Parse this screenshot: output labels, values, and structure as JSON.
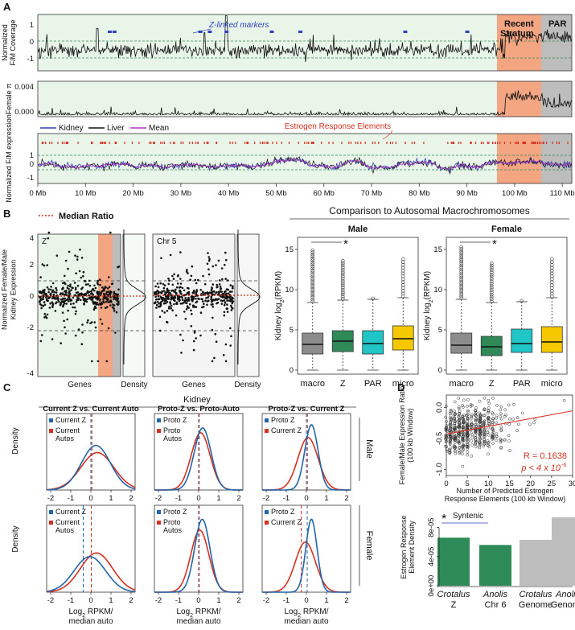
{
  "panels": {
    "A": "A",
    "B": "B",
    "C": "C",
    "D": "D"
  },
  "colors": {
    "region_bg": "#eaf5ea",
    "recent_stratum": "#f4a582",
    "par": "#bdbdbd",
    "kidney": "#2d3fc0",
    "liver": "#111111",
    "mean": "#b030c8",
    "male_female_red": "#d7301f",
    "blue": "#2166ac",
    "macro": "#8c8c8c",
    "z": "#2e8b57",
    "par_box": "#20c5c5",
    "micro": "#f5c800",
    "bar_green": "#2e8b57",
    "bar_grey": "#bdbdbd"
  },
  "chart_data": [
    {
      "id": "A1",
      "type": "line",
      "ylabel": "Normalized F/M Coverage",
      "yticks": [
        1,
        0,
        -1
      ],
      "ylim": [
        -1.4,
        1.5
      ],
      "annotation": "Z-linked markers",
      "marker_positions_mb": [
        15,
        16,
        34,
        36,
        39.5,
        49,
        55,
        77,
        90
      ],
      "regions": [
        {
          "label": "Recent Stratum",
          "start_mb": 98,
          "end_mb": 106
        },
        {
          "label": "PAR",
          "start_mb": 106,
          "end_mb": 112
        }
      ],
      "xlim_mb": [
        0,
        112
      ]
    },
    {
      "id": "A2",
      "type": "line",
      "ylabel": "Female π",
      "yticks": [
        "0.004",
        "0.000"
      ],
      "ylim": [
        0,
        0.005
      ]
    },
    {
      "id": "A3",
      "type": "line",
      "ylabel": "Normalized F/M expression",
      "yticks": [
        1,
        0,
        -1
      ],
      "ylim": [
        -1.4,
        1.4
      ],
      "legend": [
        "Kidney",
        "Liver",
        "Mean"
      ],
      "annotation": "Estrogen Response Elements",
      "xticks": [
        "0 Mb",
        "10 Mb",
        "20 Mb",
        "30 Mb",
        "40 Mb",
        "50 Mb",
        "60 Mb",
        "70 Mb",
        "80 Mb",
        "90 Mb",
        "100 Mb",
        "110 Mb"
      ]
    },
    {
      "id": "B1",
      "type": "scatter",
      "legend": "Median Ratio",
      "ylabel": "Normalized Female/Male Kidney Expression",
      "yticks": [
        4,
        2,
        0,
        -2,
        -4
      ],
      "ylim": [
        -4.3,
        4.3
      ],
      "subpanels": [
        {
          "label": "Z",
          "xlabel": "Genes"
        },
        {
          "label": "Chr 5",
          "xlabel": "Genes"
        }
      ],
      "density_label": "Density"
    },
    {
      "id": "B2",
      "type": "box",
      "super_title": "Comparison to Autosomal Macrochromosomes",
      "ylabel": "Kidney log2(RPKM)",
      "yticks": [
        0,
        5,
        10,
        15
      ],
      "ylim": [
        -0.5,
        16.5
      ],
      "categories": [
        "macro",
        "Z",
        "PAR",
        "micro"
      ],
      "panels": [
        {
          "title": "Male",
          "star": "*",
          "boxes": [
            {
              "q1": 2.0,
              "median": 3.2,
              "q3": 4.6,
              "wlo": 0,
              "whi": 8.4
            },
            {
              "q1": 2.3,
              "median": 3.6,
              "q3": 4.9,
              "wlo": 0,
              "whi": 8.7
            },
            {
              "q1": 2.0,
              "median": 3.3,
              "q3": 4.9,
              "wlo": 0,
              "whi": 8.8
            },
            {
              "q1": 2.5,
              "median": 3.9,
              "q3": 5.5,
              "wlo": 0,
              "whi": 9.0
            }
          ]
        },
        {
          "title": "Female",
          "star": "*",
          "boxes": [
            {
              "q1": 2.1,
              "median": 3.1,
              "q3": 4.6,
              "wlo": 0,
              "whi": 8.8
            },
            {
              "q1": 1.8,
              "median": 2.9,
              "q3": 4.2,
              "wlo": 0,
              "whi": 8.4
            },
            {
              "q1": 2.2,
              "median": 3.3,
              "q3": 5.1,
              "wlo": 0,
              "whi": 8.5
            },
            {
              "q1": 2.2,
              "median": 3.5,
              "q3": 5.4,
              "wlo": 0,
              "whi": 9.0
            }
          ]
        }
      ]
    },
    {
      "id": "C",
      "type": "line",
      "header": "Kidney",
      "ylabel": "Density",
      "xlabel_line1": "Log2 RPKM/",
      "xlabel_line2": "median auto",
      "xticks": [
        -2,
        -1,
        0,
        1,
        2
      ],
      "xlim": [
        -2.2,
        2.2
      ],
      "row_labels": [
        "Male",
        "Female"
      ],
      "columns": [
        {
          "title": "Current Z vs. Current Auto",
          "legend": [
            "Current Z",
            "Current Autos"
          ]
        },
        {
          "title": "Proto-Z vs. Proto-Auto",
          "legend": [
            "Proto Z",
            "Proto Autos"
          ]
        },
        {
          "title": "Proto-Z vs. Current Z",
          "legend": [
            "Proto Z",
            "Current Z"
          ]
        }
      ],
      "peaks": {
        "male": [
          {
            "blue": {
              "mu": 0.25,
              "sd": 0.72,
              "h": 0.56
            },
            "red": {
              "mu": 0.32,
              "sd": 0.82,
              "h": 0.47
            }
          },
          {
            "blue": {
              "mu": 0.2,
              "sd": 0.42,
              "h": 0.78
            },
            "red": {
              "mu": 0.1,
              "sd": 0.47,
              "h": 0.72
            }
          },
          {
            "blue": {
              "mu": 0.25,
              "sd": 0.33,
              "h": 0.82
            },
            "red": {
              "mu": 0.08,
              "sd": 0.5,
              "h": 0.66
            }
          }
        ],
        "female": [
          {
            "blue": {
              "mu": -0.05,
              "sd": 0.78,
              "h": 0.39
            },
            "red": {
              "mu": 0.28,
              "sd": 0.8,
              "h": 0.43
            }
          },
          {
            "blue": {
              "mu": 0.18,
              "sd": 0.38,
              "h": 0.8
            },
            "red": {
              "mu": 0.06,
              "sd": 0.45,
              "h": 0.68
            }
          },
          {
            "blue": {
              "mu": 0.25,
              "sd": 0.28,
              "h": 0.8
            },
            "red": {
              "mu": -0.05,
              "sd": 0.5,
              "h": 0.55
            }
          }
        ]
      },
      "median_lines": {
        "male": [
          {
            "blue": 0.0,
            "red": 0.05
          },
          {
            "blue": 0.0,
            "red": 0.03
          },
          {
            "blue": 0.0,
            "red": 0.05
          }
        ],
        "female": [
          {
            "blue": -0.38,
            "red": 0.02
          },
          {
            "blue": 0.0,
            "red": 0.03
          },
          {
            "blue": 0.04,
            "red": -0.26
          }
        ]
      }
    },
    {
      "id": "D1",
      "type": "scatter",
      "ylabel": "Female/Male Expression Ratio (100 kb Window)",
      "xlabel": "Number of Predicted Estrogen Response Elements (100 kb Window)",
      "xticks": [
        0,
        5,
        10,
        15,
        20,
        25,
        30
      ],
      "xlim": [
        0,
        30
      ],
      "yticks": [
        "0.0",
        "-0.5",
        "-1.0"
      ],
      "ylim": [
        -1.1,
        0.2
      ],
      "r_label": "R = 0.1638",
      "p_label": "p < 4 x 10",
      "p_exp": "-6",
      "fit": {
        "intercept": -0.43,
        "slope": 0.0125
      }
    },
    {
      "id": "D2",
      "type": "bar",
      "ylabel": "Estrogen Response Element Density",
      "yticks": [
        "0e+00",
        "4e-05",
        "8e-05"
      ],
      "ylim": [
        0,
        9.5e-05
      ],
      "categories": [
        [
          "Crotalus",
          "Z"
        ],
        [
          "Anolis",
          "Chr 6"
        ],
        [
          "Crotalus",
          "Genome"
        ],
        [
          "Anolis",
          "Genome"
        ]
      ],
      "values": [
        6.6e-05,
        5.6e-05,
        6.3e-05,
        9.4e-05
      ],
      "bracket_label": "Syntenic",
      "star": "*"
    }
  ]
}
